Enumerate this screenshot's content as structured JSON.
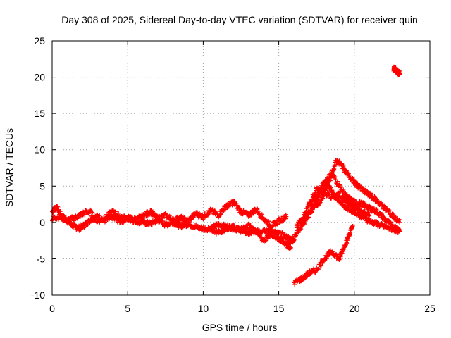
{
  "chart_data": {
    "type": "scatter",
    "title": "Day 308 of 2025, Sidereal Day-to-day VTEC variation (SDTVAR) for receiver quin",
    "xlabel": "GPS time / hours",
    "ylabel": "SDTVAR / TECUs",
    "xlim": [
      0,
      25
    ],
    "ylim": [
      -10,
      25
    ],
    "xticks": [
      0,
      5,
      10,
      15,
      20,
      25
    ],
    "yticks": [
      -10,
      -5,
      0,
      5,
      10,
      15,
      20,
      25
    ],
    "grid": true,
    "marker": "+",
    "color": "#ff0000",
    "series": [
      {
        "name": "trace-base",
        "x": [
          0.0,
          0.3,
          0.6,
          1.0,
          1.4,
          1.8,
          2.2,
          2.6,
          3.0,
          3.5,
          4.0,
          4.5,
          5.0,
          5.5,
          6.0,
          6.5,
          7.0,
          7.5,
          8.0,
          8.5,
          9.0,
          9.5,
          10.0,
          10.5,
          11.0,
          11.5,
          12.0,
          12.5,
          13.0,
          13.5,
          14.0,
          14.5,
          15.0,
          15.5,
          16.0
        ],
        "y": [
          1.5,
          2.2,
          1.0,
          0.2,
          -0.5,
          -0.8,
          -0.3,
          0.5,
          0.8,
          0.3,
          0.6,
          0.2,
          0.5,
          0.2,
          0.0,
          -0.2,
          0.3,
          -0.3,
          0.0,
          -0.5,
          -0.2,
          -0.6,
          -0.9,
          -0.8,
          -0.3,
          -0.6,
          -0.8,
          -1.1,
          -0.5,
          -1.3,
          -1.0,
          -1.2,
          -1.5,
          -2.0,
          -2.5
        ]
      },
      {
        "name": "trace-upper",
        "x": [
          0.0,
          0.5,
          1.0,
          1.5,
          2.0,
          2.5,
          3.0,
          3.5,
          4.0,
          4.5,
          5.0,
          5.5,
          6.0,
          6.5,
          7.0,
          7.5,
          8.0,
          8.5,
          9.0,
          9.5,
          10.0,
          10.5,
          11.0,
          11.5,
          12.0,
          12.5,
          13.0,
          13.5,
          14.0,
          14.5,
          15.0,
          15.5
        ],
        "y": [
          0.5,
          0.8,
          0.3,
          0.6,
          1.2,
          1.5,
          0.2,
          0.6,
          1.5,
          0.8,
          0.6,
          0.4,
          0.8,
          1.5,
          0.5,
          1.0,
          0.3,
          0.6,
          0.2,
          1.2,
          0.8,
          1.6,
          1.0,
          2.2,
          2.8,
          1.5,
          1.0,
          1.8,
          0.5,
          -0.5,
          0.2,
          0.8
        ]
      },
      {
        "name": "trace-lower",
        "x": [
          10.5,
          11.0,
          11.5,
          12.0,
          12.5,
          13.0,
          13.5,
          14.0,
          14.5,
          15.0,
          15.5,
          15.8
        ],
        "y": [
          -1.0,
          -1.4,
          -0.8,
          -0.5,
          -1.0,
          -1.5,
          -1.2,
          -2.5,
          -1.6,
          -2.2,
          -3.0,
          -3.5
        ]
      },
      {
        "name": "trace-rise-a",
        "x": [
          15.5,
          16.0,
          16.5,
          17.0,
          17.5,
          18.0,
          18.5,
          19.0,
          19.5,
          20.0,
          20.5,
          21.0,
          21.5,
          22.0,
          22.5,
          23.0
        ],
        "y": [
          -3.0,
          -2.2,
          -0.5,
          1.5,
          3.5,
          5.5,
          6.8,
          5.0,
          3.5,
          2.8,
          2.5,
          2.0,
          1.5,
          0.5,
          -0.5,
          -1.0
        ]
      },
      {
        "name": "trace-rise-b",
        "x": [
          16.5,
          17.0,
          17.5,
          17.8,
          18.2,
          18.6,
          19.0,
          19.5,
          20.0,
          20.5,
          21.0,
          21.5,
          22.0,
          22.5,
          23.0
        ],
        "y": [
          -0.5,
          1.0,
          3.0,
          4.5,
          5.5,
          4.0,
          3.0,
          2.0,
          1.5,
          0.8,
          0.2,
          -0.2,
          -0.6,
          -0.9,
          -1.2
        ]
      },
      {
        "name": "trace-peak",
        "x": [
          17.5,
          18.0,
          18.5,
          18.8,
          19.2,
          19.6,
          20.0,
          20.5,
          21.0,
          21.5,
          22.0,
          22.5,
          23.0
        ],
        "y": [
          2.0,
          4.0,
          6.5,
          8.5,
          7.8,
          6.5,
          5.5,
          4.5,
          3.8,
          3.0,
          2.0,
          1.0,
          0.0
        ]
      },
      {
        "name": "trace-mid",
        "x": [
          16.2,
          16.6,
          17.0,
          17.5,
          18.0,
          18.5,
          19.0,
          19.5,
          20.0,
          20.5,
          21.0
        ],
        "y": [
          -0.5,
          0.5,
          2.5,
          4.5,
          4.0,
          3.5,
          3.8,
          3.0,
          2.0,
          1.5,
          1.0
        ]
      },
      {
        "name": "trace-dip",
        "x": [
          16.0,
          16.5,
          17.0,
          17.5,
          18.0,
          18.5,
          19.0,
          19.3,
          19.6,
          19.9
        ],
        "y": [
          -8.3,
          -7.8,
          -7.0,
          -6.5,
          -5.0,
          -4.0,
          -5.0,
          -3.5,
          -2.0,
          -0.5
        ]
      },
      {
        "name": "trace-outlier",
        "x": [
          22.6,
          22.7,
          22.8,
          22.9,
          23.0
        ],
        "y": [
          21.2,
          21.0,
          20.9,
          20.7,
          20.5
        ]
      }
    ]
  }
}
